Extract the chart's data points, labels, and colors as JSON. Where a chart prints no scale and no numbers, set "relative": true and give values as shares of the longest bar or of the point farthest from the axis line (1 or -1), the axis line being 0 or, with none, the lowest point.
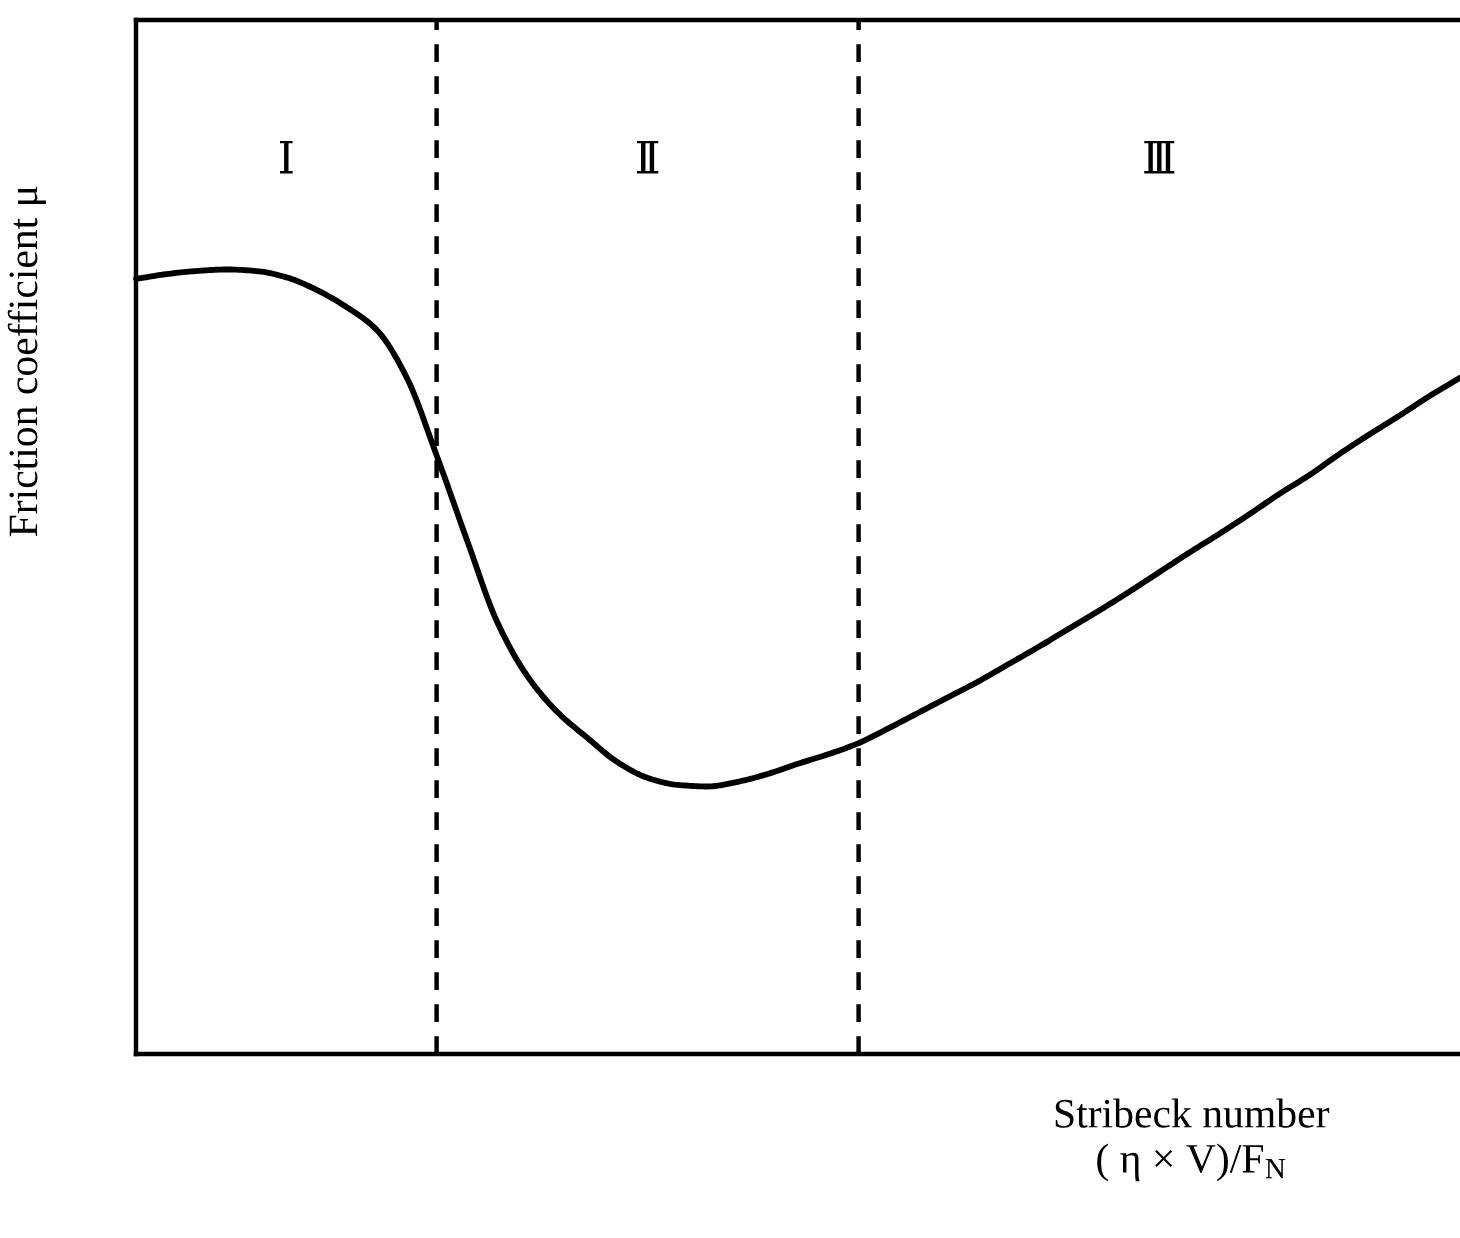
{
  "chart_data": {
    "type": "line",
    "xlabel": "Stribeck number\n( η × V)/F$_{N}$",
    "ylabel": "Friction coefficient μ",
    "categories": [
      null,
      null,
      null,
      null,
      null,
      null,
      null,
      null,
      null,
      null,
      null,
      null,
      null,
      null,
      null,
      null,
      null,
      null,
      null,
      null,
      null,
      null,
      null,
      null,
      null,
      null,
      null,
      null,
      null,
      null,
      null,
      null,
      null,
      null,
      null,
      null,
      null,
      null,
      null,
      null,
      null,
      null,
      null,
      null,
      null
    ],
    "values": [
      0.988,
      0.994,
      0.998,
      1.0,
      0.998,
      0.99,
      0.974,
      0.952,
      0.923,
      0.862,
      0.762,
      0.655,
      0.551,
      0.482,
      0.436,
      0.403,
      0.372,
      0.352,
      0.343,
      0.341,
      0.347,
      0.357,
      0.37,
      0.382,
      0.396,
      0.415,
      0.435,
      0.455,
      0.475,
      0.497,
      0.519,
      0.542,
      0.565,
      0.589,
      0.614,
      0.639,
      0.663,
      0.688,
      0.714,
      0.738,
      0.765,
      0.79,
      0.814,
      0.839,
      0.862
    ],
    "color": "#000000",
    "relative": true,
    "line_style": "solid",
    "annotations": [
      "Ⅰ",
      "Ⅱ",
      "Ⅲ"
    ]
  }
}
